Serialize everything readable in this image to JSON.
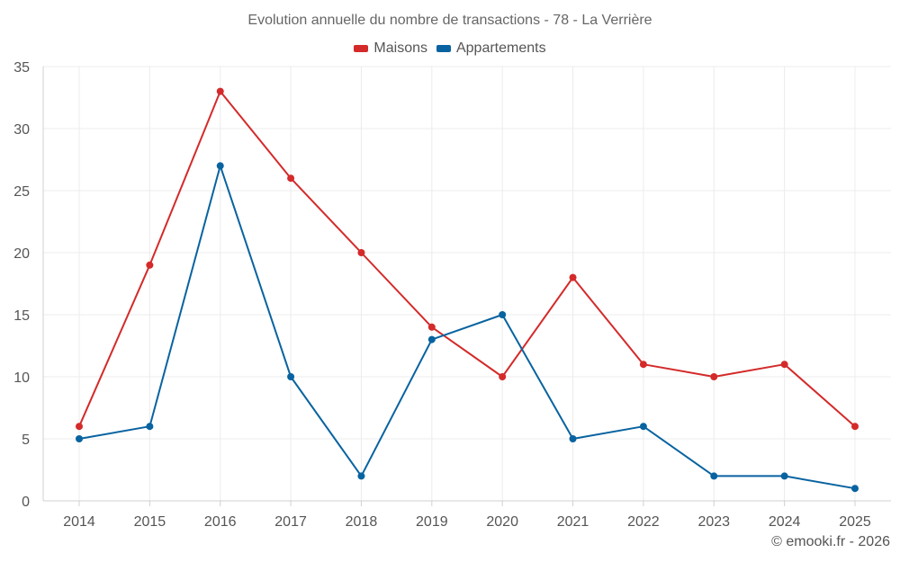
{
  "chart_data": {
    "type": "line",
    "title": "Evolution annuelle du nombre de transactions - 78 - La Verrière",
    "categories": [
      "2014",
      "2015",
      "2016",
      "2017",
      "2018",
      "2019",
      "2020",
      "2021",
      "2022",
      "2023",
      "2024",
      "2025"
    ],
    "series": [
      {
        "name": "Maisons",
        "color": "#d42a2a",
        "values": [
          6,
          19,
          33,
          26,
          20,
          14,
          10,
          18,
          11,
          10,
          11,
          6
        ]
      },
      {
        "name": "Appartements",
        "color": "#0863a0",
        "values": [
          5,
          6,
          27,
          10,
          2,
          13,
          15,
          5,
          6,
          2,
          2,
          1
        ]
      }
    ],
    "ylim": [
      0,
      35
    ],
    "yticks": [
      0,
      5,
      10,
      15,
      20,
      25,
      30,
      35
    ],
    "grid": true,
    "legend_position": "top-center",
    "xlabel": "",
    "ylabel": ""
  },
  "footer": {
    "copyright": "© emooki.fr - 2026"
  }
}
